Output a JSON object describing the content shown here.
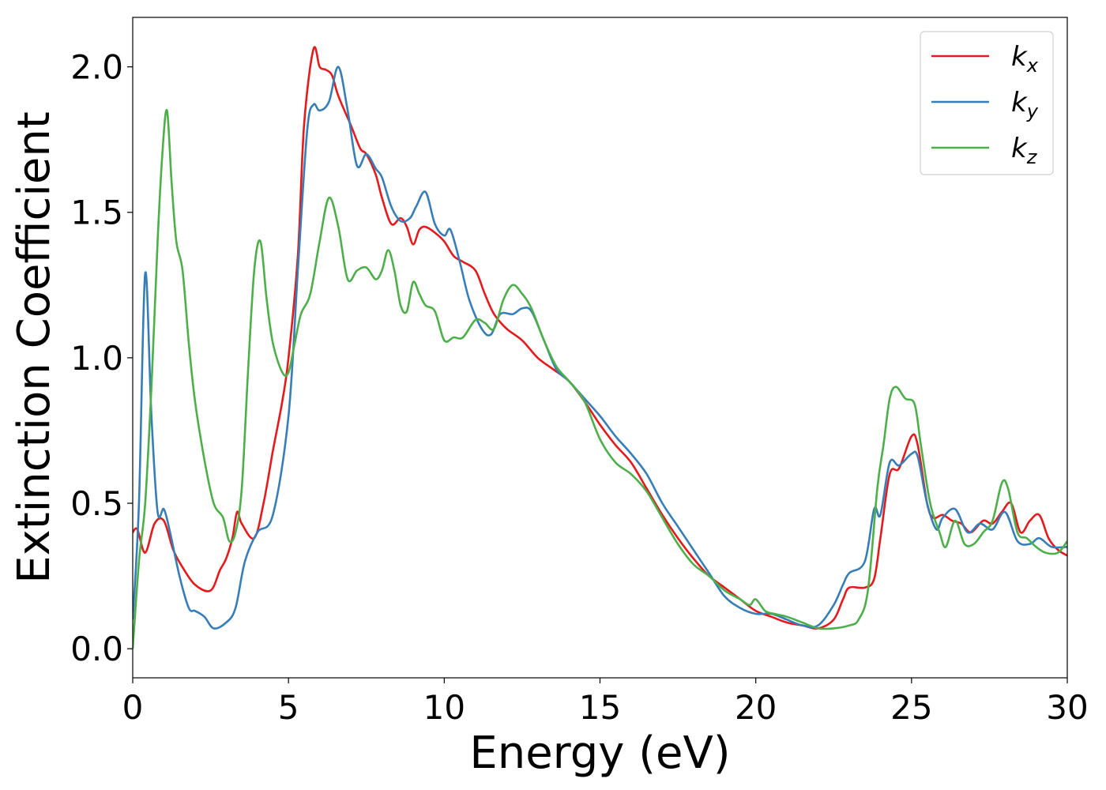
{
  "chart_data": {
    "type": "line",
    "title": "",
    "xlabel": "Energy (eV)",
    "ylabel": "Extinction Coefficient",
    "xlim": [
      0,
      30
    ],
    "ylim": [
      -0.1,
      2.17
    ],
    "xticks": [
      0,
      5,
      10,
      15,
      20,
      25,
      30
    ],
    "xtick_labels": [
      "0",
      "5",
      "10",
      "15",
      "20",
      "25",
      "30"
    ],
    "yticks": [
      0.0,
      0.5,
      1.0,
      1.5,
      2.0
    ],
    "ytick_labels": [
      "0.0",
      "0.5",
      "1.0",
      "1.5",
      "2.0"
    ],
    "grid": false,
    "legend_position": "top-right",
    "series": [
      {
        "name": "k",
        "subscript": "x",
        "color": "#e41a1c",
        "x": [
          0,
          0.15,
          0.4,
          0.7,
          1.0,
          1.3,
          1.6,
          2.0,
          2.5,
          2.8,
          3.0,
          3.2,
          3.35,
          3.5,
          3.9,
          4.2,
          4.5,
          4.8,
          5.0,
          5.3,
          5.5,
          5.8,
          6.0,
          6.2,
          6.4,
          6.6,
          7.0,
          7.3,
          7.5,
          7.8,
          8.0,
          8.3,
          8.6,
          8.8,
          9.0,
          9.2,
          9.4,
          9.7,
          10.0,
          10.3,
          10.6,
          11.0,
          11.3,
          11.6,
          12.0,
          12.5,
          13.0,
          13.5,
          14.0,
          14.5,
          15.0,
          15.5,
          16.0,
          16.5,
          17.0,
          17.5,
          18.0,
          18.5,
          19.0,
          19.5,
          20.0,
          20.5,
          21.0,
          21.5,
          22.0,
          22.5,
          22.8,
          23.0,
          23.5,
          23.8,
          24.0,
          24.3,
          24.6,
          25.0,
          25.2,
          25.5,
          25.7,
          26.0,
          26.3,
          26.6,
          26.9,
          27.3,
          27.6,
          27.9,
          28.2,
          28.5,
          28.8,
          29.1,
          29.4,
          29.7,
          30.0
        ],
        "values": [
          0.4,
          0.41,
          0.33,
          0.43,
          0.44,
          0.34,
          0.28,
          0.22,
          0.2,
          0.27,
          0.31,
          0.38,
          0.47,
          0.43,
          0.38,
          0.5,
          0.68,
          0.85,
          1.0,
          1.35,
          1.8,
          2.06,
          2.0,
          1.99,
          1.97,
          1.9,
          1.8,
          1.72,
          1.7,
          1.63,
          1.55,
          1.46,
          1.48,
          1.45,
          1.39,
          1.44,
          1.45,
          1.43,
          1.4,
          1.35,
          1.33,
          1.3,
          1.22,
          1.15,
          1.1,
          1.06,
          1.0,
          0.96,
          0.92,
          0.85,
          0.77,
          0.7,
          0.64,
          0.55,
          0.46,
          0.38,
          0.31,
          0.25,
          0.21,
          0.17,
          0.13,
          0.11,
          0.09,
          0.08,
          0.07,
          0.1,
          0.17,
          0.21,
          0.21,
          0.24,
          0.38,
          0.6,
          0.62,
          0.73,
          0.7,
          0.5,
          0.45,
          0.46,
          0.44,
          0.43,
          0.4,
          0.44,
          0.43,
          0.47,
          0.5,
          0.4,
          0.44,
          0.46,
          0.38,
          0.34,
          0.32
        ]
      },
      {
        "name": "k",
        "subscript": "y",
        "color": "#377eb8",
        "x": [
          0,
          0.2,
          0.4,
          0.6,
          0.8,
          1.0,
          1.2,
          1.5,
          1.8,
          2.0,
          2.3,
          2.6,
          3.0,
          3.3,
          3.6,
          4.0,
          4.5,
          5.0,
          5.3,
          5.6,
          5.8,
          6.0,
          6.3,
          6.6,
          6.9,
          7.2,
          7.5,
          7.8,
          8.0,
          8.3,
          8.6,
          8.9,
          9.1,
          9.4,
          9.7,
          10.0,
          10.2,
          10.5,
          10.8,
          11.2,
          11.5,
          11.8,
          12.2,
          12.5,
          12.8,
          13.2,
          13.6,
          14.0,
          14.5,
          15.0,
          15.5,
          16.0,
          16.5,
          17.0,
          17.5,
          18.0,
          18.5,
          19.0,
          19.5,
          20.0,
          20.5,
          21.0,
          21.5,
          22.0,
          22.5,
          22.8,
          23.0,
          23.5,
          23.8,
          24.0,
          24.3,
          24.6,
          25.0,
          25.2,
          25.5,
          25.8,
          26.0,
          26.4,
          26.8,
          27.2,
          27.6,
          28.0,
          28.4,
          28.8,
          29.1,
          29.5,
          30.0
        ],
        "values": [
          0.1,
          0.5,
          1.29,
          0.8,
          0.47,
          0.48,
          0.4,
          0.25,
          0.14,
          0.13,
          0.11,
          0.07,
          0.09,
          0.14,
          0.3,
          0.4,
          0.46,
          0.8,
          1.3,
          1.78,
          1.87,
          1.85,
          1.88,
          2.0,
          1.85,
          1.66,
          1.7,
          1.65,
          1.62,
          1.52,
          1.47,
          1.48,
          1.52,
          1.57,
          1.46,
          1.42,
          1.44,
          1.33,
          1.2,
          1.1,
          1.08,
          1.15,
          1.15,
          1.17,
          1.16,
          1.06,
          0.96,
          0.92,
          0.86,
          0.8,
          0.73,
          0.67,
          0.6,
          0.5,
          0.42,
          0.34,
          0.26,
          0.18,
          0.14,
          0.12,
          0.12,
          0.1,
          0.08,
          0.08,
          0.15,
          0.22,
          0.26,
          0.3,
          0.48,
          0.46,
          0.64,
          0.63,
          0.67,
          0.66,
          0.5,
          0.41,
          0.45,
          0.48,
          0.4,
          0.43,
          0.41,
          0.47,
          0.37,
          0.36,
          0.38,
          0.35,
          0.35
        ]
      },
      {
        "name": "k",
        "subscript": "z",
        "color": "#4daf4a",
        "x": [
          0,
          0.2,
          0.4,
          0.6,
          0.8,
          0.95,
          1.1,
          1.25,
          1.4,
          1.6,
          1.8,
          2.0,
          2.3,
          2.6,
          2.9,
          3.1,
          3.3,
          3.5,
          3.7,
          3.9,
          4.1,
          4.3,
          4.5,
          4.8,
          5.0,
          5.2,
          5.4,
          5.7,
          6.0,
          6.3,
          6.6,
          6.9,
          7.2,
          7.5,
          7.8,
          8.0,
          8.2,
          8.4,
          8.6,
          8.8,
          9.0,
          9.2,
          9.4,
          9.7,
          10.0,
          10.3,
          10.6,
          11.0,
          11.3,
          11.6,
          11.9,
          12.2,
          12.5,
          12.8,
          13.2,
          13.6,
          14.0,
          14.5,
          15.0,
          15.5,
          16.0,
          16.5,
          17.0,
          17.5,
          18.0,
          18.5,
          19.0,
          19.5,
          19.8,
          20.0,
          20.3,
          20.6,
          21.0,
          21.5,
          22.0,
          22.5,
          23.0,
          23.3,
          23.6,
          23.9,
          24.1,
          24.3,
          24.5,
          24.8,
          25.1,
          25.3,
          25.6,
          25.9,
          26.1,
          26.4,
          26.7,
          27.0,
          27.3,
          27.6,
          27.9,
          28.1,
          28.4,
          28.7,
          29.0,
          29.3,
          29.7,
          30.0
        ],
        "values": [
          0.0,
          0.3,
          0.5,
          0.9,
          1.4,
          1.7,
          1.85,
          1.6,
          1.4,
          1.3,
          1.05,
          0.85,
          0.65,
          0.5,
          0.45,
          0.37,
          0.4,
          0.55,
          0.95,
          1.3,
          1.4,
          1.2,
          1.05,
          0.95,
          0.95,
          1.05,
          1.15,
          1.22,
          1.4,
          1.55,
          1.45,
          1.27,
          1.3,
          1.31,
          1.27,
          1.3,
          1.37,
          1.3,
          1.18,
          1.16,
          1.26,
          1.22,
          1.18,
          1.16,
          1.06,
          1.07,
          1.07,
          1.13,
          1.12,
          1.1,
          1.2,
          1.25,
          1.22,
          1.17,
          1.06,
          0.97,
          0.92,
          0.85,
          0.72,
          0.64,
          0.6,
          0.54,
          0.45,
          0.36,
          0.29,
          0.25,
          0.2,
          0.17,
          0.15,
          0.17,
          0.13,
          0.12,
          0.11,
          0.09,
          0.07,
          0.07,
          0.08,
          0.1,
          0.2,
          0.55,
          0.7,
          0.86,
          0.9,
          0.86,
          0.84,
          0.7,
          0.5,
          0.4,
          0.35,
          0.44,
          0.36,
          0.36,
          0.4,
          0.44,
          0.57,
          0.55,
          0.4,
          0.38,
          0.35,
          0.33,
          0.33,
          0.37
        ]
      }
    ]
  }
}
